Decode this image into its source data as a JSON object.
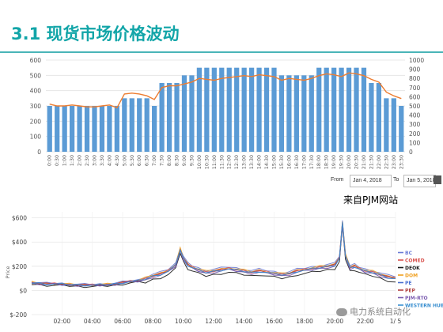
{
  "slide": {
    "title": "3.1 现货市场价格波动",
    "source_note": "来自PJM网站",
    "watermark": "电力系统自动化"
  },
  "date_range": {
    "from_label": "From",
    "from_value": "Jan 4, 2018",
    "to_label": "To",
    "to_value": "Jan 5, 2018"
  },
  "colors": {
    "title": "#12a5a8",
    "bars": "#5b9bd5",
    "price_line": "#ed7d31"
  },
  "chart_data": [
    {
      "type": "bar",
      "categories": [
        "0:00",
        "0:30",
        "1:00",
        "1:30",
        "2:00",
        "2:30",
        "3:00",
        "3:30",
        "4:00",
        "4:30",
        "5:00",
        "5:30",
        "6:00",
        "6:30",
        "7:00",
        "7:30",
        "8:00",
        "8:30",
        "9:00",
        "9:30",
        "10:00",
        "10:30",
        "11:00",
        "11:30",
        "12:00",
        "12:30",
        "13:00",
        "13:30",
        "14:00",
        "14:30",
        "15:00",
        "15:30",
        "16:00",
        "16:30",
        "17:00",
        "17:30",
        "18:00",
        "18:30",
        "19:00",
        "19:30",
        "20:00",
        "20:30",
        "21:00",
        "21:30",
        "22:00",
        "22:30",
        "23:00",
        "23:30"
      ],
      "y_left_ticks": [
        0,
        100,
        200,
        300,
        400,
        500,
        600
      ],
      "y_right_ticks": [
        0,
        100,
        200,
        300,
        400,
        500,
        600,
        700,
        800,
        900,
        1000
      ],
      "ylim_left": [
        0,
        600
      ],
      "ylim_right": [
        0,
        1000
      ],
      "grid": true,
      "series": [
        {
          "axis": "left",
          "kind": "bar",
          "values": [
            300,
            300,
            300,
            300,
            300,
            300,
            300,
            300,
            300,
            300,
            350,
            350,
            350,
            350,
            300,
            450,
            450,
            450,
            500,
            500,
            550,
            550,
            550,
            550,
            550,
            550,
            550,
            550,
            550,
            550,
            550,
            500,
            500,
            500,
            500,
            500,
            550,
            550,
            550,
            550,
            550,
            550,
            550,
            450,
            450,
            350,
            350,
            300
          ]
        },
        {
          "axis": "right",
          "kind": "line",
          "values": [
            520,
            500,
            500,
            510,
            500,
            490,
            490,
            500,
            510,
            480,
            630,
            640,
            630,
            610,
            570,
            700,
            720,
            720,
            740,
            760,
            800,
            790,
            780,
            800,
            810,
            820,
            830,
            820,
            840,
            830,
            820,
            780,
            800,
            790,
            780,
            800,
            830,
            850,
            840,
            820,
            860,
            850,
            830,
            790,
            760,
            650,
            610,
            580
          ]
        }
      ]
    },
    {
      "type": "line",
      "x_tick_labels": [
        "02:00",
        "04:00",
        "06:00",
        "08:00",
        "10:00",
        "12:00",
        "14:00",
        "16:00",
        "18:00",
        "20:00",
        "22:00",
        "1/ 5"
      ],
      "y_tick_labels": [
        "$600",
        "$400",
        "$200",
        "$0",
        "$-200"
      ],
      "ylim": [
        -200,
        650
      ],
      "ylabel": "Price",
      "grid": true,
      "legend_position": "right",
      "series": [
        {
          "name": "BC",
          "color": "#6b7bd6",
          "offset": 25
        },
        {
          "name": "COMED",
          "color": "#d9534f",
          "offset": 12
        },
        {
          "name": "DEOK",
          "color": "#1a1a1a",
          "offset": -20
        },
        {
          "name": "DOM",
          "color": "#f0a020",
          "offset": 18
        },
        {
          "name": "PE",
          "color": "#4a6fd0",
          "offset": 5
        },
        {
          "name": "PEP",
          "color": "#b04040",
          "offset": 10
        },
        {
          "name": "PJM-RTO",
          "color": "#7a5bb0",
          "offset": 0
        },
        {
          "name": "WESTERN HUB",
          "color": "#3a8fd0",
          "offset": 8
        }
      ],
      "base_profile": {
        "x_hours": [
          0,
          0.5,
          1,
          1.5,
          2,
          2.5,
          3,
          3.5,
          4,
          4.5,
          5,
          5.5,
          6,
          6.5,
          7,
          7.5,
          8,
          8.5,
          9,
          9.5,
          9.8,
          10,
          10.3,
          10.6,
          11,
          11.5,
          12,
          12.5,
          13,
          13.5,
          14,
          14.5,
          15,
          15.5,
          16,
          16.5,
          17,
          17.5,
          18,
          18.5,
          19,
          19.5,
          20,
          20.3,
          20.5,
          20.7,
          21,
          21.3,
          21.6,
          22,
          22.5,
          23,
          23.5,
          24
        ],
        "y": [
          60,
          55,
          50,
          50,
          48,
          45,
          42,
          40,
          40,
          42,
          45,
          50,
          60,
          70,
          75,
          85,
          110,
          125,
          150,
          200,
          330,
          260,
          200,
          180,
          160,
          140,
          150,
          160,
          170,
          160,
          150,
          140,
          150,
          140,
          130,
          120,
          130,
          150,
          160,
          170,
          180,
          190,
          200,
          260,
          550,
          280,
          180,
          190,
          170,
          150,
          140,
          120,
          100,
          90
        ]
      }
    }
  ]
}
